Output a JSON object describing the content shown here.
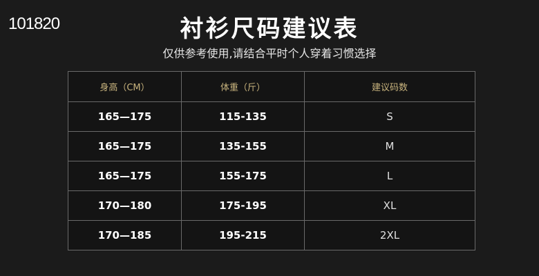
{
  "corner_text": "101820",
  "title": "衬衫尺码建议表",
  "subtitle": "仅供参考使用,请结合平时个人穿着习惯选择",
  "table": {
    "headers": [
      "身高（CM）",
      "体重（斤）",
      "建议码数"
    ],
    "rows": [
      [
        "165—175",
        "115-135",
        "S"
      ],
      [
        "165—175",
        "135-155",
        "M"
      ],
      [
        "165—175",
        "155-175",
        "L"
      ],
      [
        "170—180",
        "175-195",
        "XL"
      ],
      [
        "170—185",
        "195-215",
        "2XL"
      ]
    ]
  },
  "colors": {
    "background": "#1b1b1b",
    "header_text": "#c9b47e",
    "border": "#6a6a6a"
  }
}
